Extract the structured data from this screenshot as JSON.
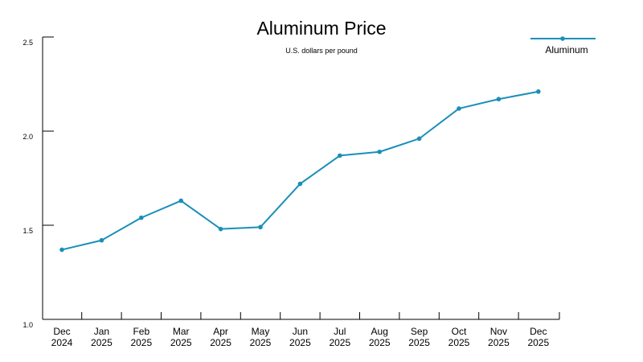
{
  "chart_data": {
    "type": "line",
    "title": "Aluminum Price",
    "subtitle": "U.S. dollars per pound",
    "xlabel": "",
    "ylabel": "",
    "categories": [
      [
        "Dec",
        "2024"
      ],
      [
        "Jan",
        "2025"
      ],
      [
        "Feb",
        "2025"
      ],
      [
        "Mar",
        "2025"
      ],
      [
        "Apr",
        "2025"
      ],
      [
        "May",
        "2025"
      ],
      [
        "Jun",
        "2025"
      ],
      [
        "Jul",
        "2025"
      ],
      [
        "Aug",
        "2025"
      ],
      [
        "Sep",
        "2025"
      ],
      [
        "Oct",
        "2025"
      ],
      [
        "Nov",
        "2025"
      ],
      [
        "Dec",
        "2025"
      ]
    ],
    "series": [
      {
        "name": "Aluminum",
        "color": "#1a8fb9",
        "values": [
          1.37,
          1.42,
          1.54,
          1.63,
          1.48,
          1.49,
          1.72,
          1.87,
          1.89,
          1.96,
          2.12,
          2.17,
          2.21
        ]
      }
    ],
    "ylim": [
      1.0,
      2.5
    ],
    "yticks": [
      "1.0",
      "1.5",
      "2.0",
      "2.5"
    ],
    "grid": false,
    "legend_position": "top-right"
  }
}
